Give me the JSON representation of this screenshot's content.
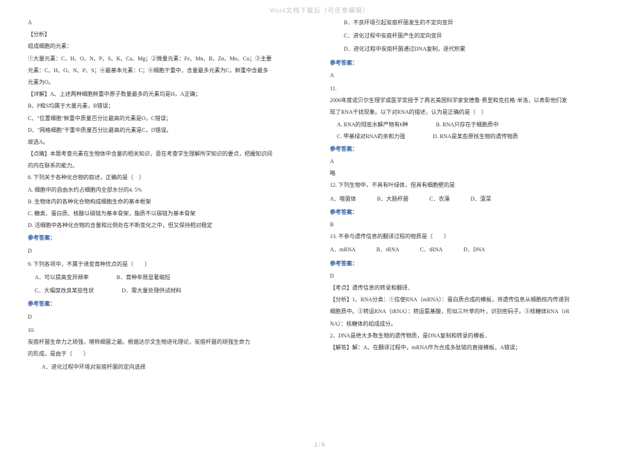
{
  "header": "Word文档下载后（可任意编辑）",
  "footer": "2 / 8",
  "left": {
    "l0": "A",
    "l1": "【分析】",
    "l2": "组成细胞的元素：",
    "l3": "①大量元素：C、H、O、N、P、S、K、Ca、Mg；②微量元素：Fe、Mn、B、Zn、Mo、Cu；③主要",
    "l4": "元素：C、H、O、N、P、S；④最基本元素：C；⑤细胞干重中，含量最多元素为C，鲜重中含最多",
    "l5": "元素为O。",
    "l6": "【详解】A、上述两种细胞鲜重中原子数量最多的元素均是H，A正确；",
    "l7": "B、P和S均属于大量元素，B错误；",
    "l8": "C、\"位置细胞\"鲜重中质量百分比最高的元素是O，C错误；",
    "l9": "D、\"网格细胞\"干重中质量百分比最高的元素是C，D错误。",
    "l10": "故选A。",
    "l11": "【点睛】本题考查元素在生物体中含量的相关知识，意在考查学生理解所学知识的要点，把握知识间",
    "l12": "的内在联系的能力。",
    "l13": "8. 下列关于各种化合物的叙述，正确的是（　）",
    "l14": "A. 细胞中的自由水约占细胞内全部水分的4. 5%",
    "l15": "B. 生物体内的各种化合物构成细胞生命的基本框架",
    "l16": "C. 糖类、蛋白质、核酸以碳链为基本骨架，脂质不以碳链为基本骨架",
    "l17": "D. 活细胞中各种化合物的含量和比例处在不断变化之中，但又保持相对稳定",
    "l18": "参考答案：",
    "l19": "D",
    "l20": "9. 下列各项中，不属于诱变育种优点的是（　　）",
    "l21a": "A．可以提高变异频率",
    "l21b": "B．育种年限显著缩短",
    "l22a": "C．大幅度改良某些性状",
    "l22b": "D．需大量处理供试材料",
    "l23": "参考答案：",
    "l24": "D",
    "l25": "10.",
    "l26": "炭疽杆菌生命力之顽强，堪称细菌之最。根据达尔文生物进化理论，炭疽杆菌的顽强生命力",
    "l27": "的形成，是由于（　　）",
    "l28": "A．进化过程中环境对炭疽杆菌的定向选择"
  },
  "right": {
    "r1": "B．不良环境引起炭疽杆菌发生的不定向变异",
    "r2": "C．进化过程中炭疽杆菌产生的定向变异",
    "r3": "D．进化过程中炭疽杆菌通过DNA复制，逐代积累",
    "r4": "参考答案：",
    "r5": "A",
    "r6": "11.",
    "r7": "2006年度诺贝尔生理学或医学奖授予了两名美国科学家安德鲁·费里和克拉格·米洛，以表彰他们发",
    "r8": "现了RNA干扰现象。以下对RNA的描述，认为是正确的是（　）",
    "r9a": "A. RNA的彻底水解产物有6种",
    "r9b": "B. RNA只存在于细胞质中",
    "r10a": "C. 甲基绿对RNA的亲和力强",
    "r10b": "D. RNA是某些原核生物的遗传物质",
    "r11": "参考答案：",
    "r12": "A",
    "r13": "略",
    "r14": "12. 下列生物中，不具有叶绿体，但具有细胞壁的是",
    "r15a": "A．噬菌体",
    "r15b": "B．大肠杆菌",
    "r15c": "C．衣藻",
    "r15d": "D．菠菜",
    "r16": "参考答案：",
    "r17": "B",
    "r18": "13. 不参与遗传信息的翻译过程的物质是（　　）",
    "r19a": "A．mRNA",
    "r19b": "B．rRNA",
    "r19c": "C．tRNA",
    "r19d": "D．DNA",
    "r20": "参考答案：",
    "r21": "D",
    "r22": "【考点】遗传信息的转录和翻译．",
    "r23": "【分析】1、RNA分类：①信使RNA（mRNA）：蛋白质合成的模板，将遗传信息从细胞核内传递到",
    "r24": "细胞质中。②转运RNA（tRNA）：转运氨基酸，形似三叶草的叶，识别密码子。③核糖体RNA（rR",
    "r25": "NA）：核糖体的组成成分。",
    "r26": "2、DNA是绝大多数生物的遗传物质，是DNA复制和转录的模板．",
    "r27": "【解答】解：A、在翻译过程中，mRNA作为合成多肽链的直接模板，A错误；"
  }
}
